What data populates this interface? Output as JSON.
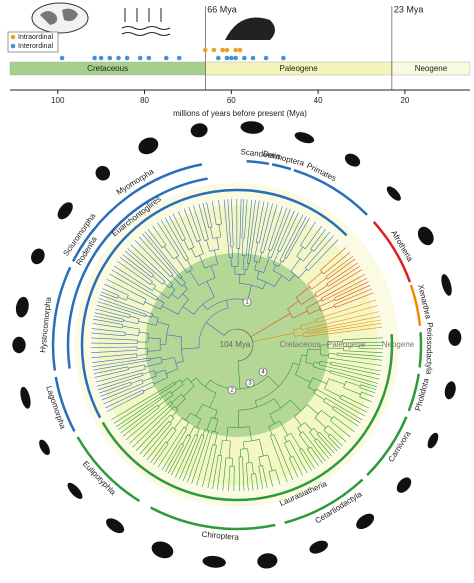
{
  "chart_data": {
    "type": "strip",
    "xlabel": "millions of years before present (Mya)",
    "xlim": [
      111,
      5
    ],
    "xticks": [
      100,
      80,
      60,
      40,
      20
    ],
    "series": [
      {
        "name": "Intraordinal",
        "color": "#f0a020",
        "x": [
          66,
          64,
          62,
          61,
          59,
          58
        ]
      },
      {
        "name": "Interordinal",
        "color": "#4a90d0",
        "x": [
          99,
          91.5,
          90,
          88,
          86,
          84,
          81,
          79,
          75,
          72,
          63,
          61,
          60,
          59,
          57,
          55,
          52,
          48
        ]
      }
    ],
    "eras": [
      {
        "name": "Cretaceous",
        "color": "#a8d08d"
      },
      {
        "name": "Paleogene",
        "color": "#f2f5b8"
      },
      {
        "name": "Neogene",
        "color": "#f8f9e0"
      }
    ],
    "annotations": [
      {
        "value": 66,
        "label": "66 Mya"
      },
      {
        "value": 23,
        "label": "23 Mya"
      }
    ]
  },
  "tree": {
    "center": {
      "age": "104 Mya",
      "eras": [
        "Cretaceous",
        "Paleogene",
        "Neogene"
      ]
    },
    "nodes": [
      "1",
      "2",
      "3",
      "4"
    ],
    "clades": [
      {
        "name": "Myomorpha",
        "color": "#2a6ebb"
      },
      {
        "name": "Scandentia",
        "color": "#2a6ebb"
      },
      {
        "name": "Dermoptera",
        "color": "#2a6ebb"
      },
      {
        "name": "Primates",
        "color": "#2a6ebb"
      },
      {
        "name": "Afrotheria",
        "color": "#e02020"
      },
      {
        "name": "Xenarthra",
        "color": "#f08a00"
      },
      {
        "name": "Perissodactyla",
        "color": "#2e9a3a"
      },
      {
        "name": "Pholidota",
        "color": "#2e9a3a"
      },
      {
        "name": "Carnivora",
        "color": "#2e9a3a"
      },
      {
        "name": "Cetartiodactyla",
        "color": "#2e9a3a"
      },
      {
        "name": "Chiroptera",
        "color": "#2e9a3a"
      },
      {
        "name": "Eulipotyphla",
        "color": "#2e9a3a"
      },
      {
        "name": "Lagomorpha",
        "color": "#2a6ebb"
      },
      {
        "name": "Hystricomorpha",
        "color": "#2a6ebb"
      },
      {
        "name": "Sciuromorpha",
        "color": "#2a6ebb"
      },
      {
        "name": "Rodentia",
        "color": "#2a6ebb"
      },
      {
        "name": "Euarchontoglires",
        "color": "#2a6ebb"
      },
      {
        "name": "Laurasiatheria",
        "color": "#2e9a3a"
      }
    ]
  }
}
